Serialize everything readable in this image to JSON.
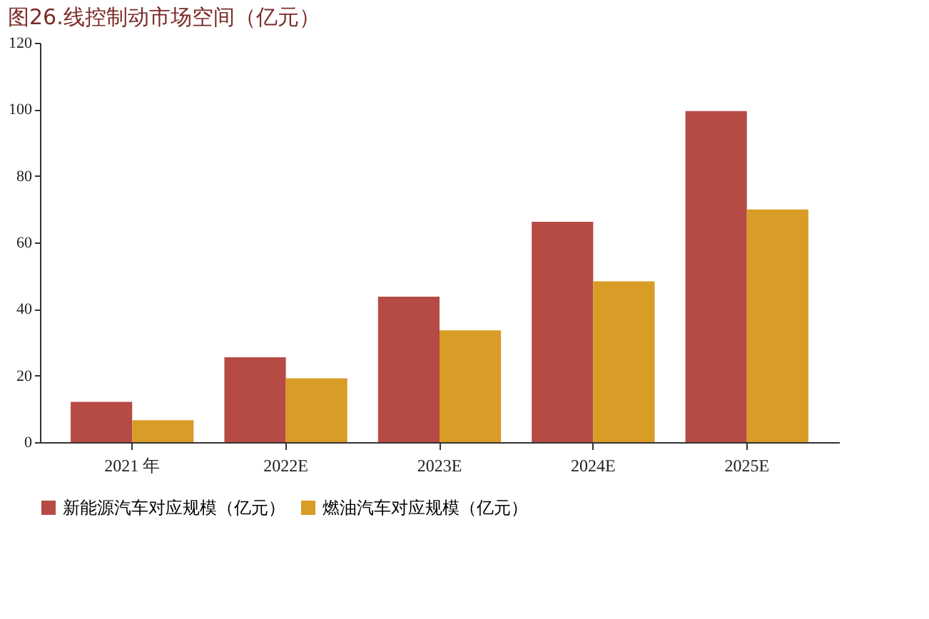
{
  "chart_data": {
    "type": "bar",
    "title": "图26.线控制动市场空间（亿元）",
    "categories": [
      "2021 年",
      "2022E",
      "2023E",
      "2024E",
      "2025E"
    ],
    "series": [
      {
        "name": "新能源汽车对应规模（亿元）",
        "color": "#b64a45",
        "values": [
          12.1,
          25.5,
          43.7,
          66.2,
          99.5
        ]
      },
      {
        "name": "燃油汽车对应规模（亿元）",
        "color": "#d99c26",
        "values": [
          6.6,
          19.2,
          33.6,
          48.3,
          69.9
        ]
      }
    ],
    "ylim": [
      0,
      120
    ],
    "yticks": [
      0,
      20,
      40,
      60,
      80,
      100,
      120
    ],
    "grid": false,
    "legend": "bottom"
  }
}
